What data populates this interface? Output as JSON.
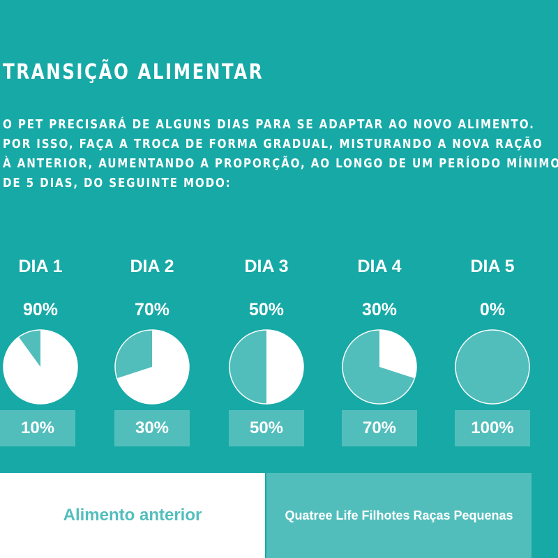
{
  "header": {
    "title": "TRANSIÇÃO ALIMENTAR",
    "intro_lines": [
      "O PET PRECISARÁ DE ALGUNS DIAS PARA SE ADAPTAR AO NOVO ALIMENTO.",
      "POR ISSO, FAÇA A TROCA DE FORMA GRADUAL, MISTURANDO A NOVA RAÇÃO",
      "À ANTERIOR, AUMENTANDO A PROPORÇÃO, AO LONGO DE UM PERÍODO MÍNIMO",
      "DE 5 DIAS, DO SEGUINTE MODO:"
    ]
  },
  "colors": {
    "background": "#17a9a6",
    "old_food": "#ffffff",
    "new_food": "#52bebc"
  },
  "days": [
    {
      "label": "DIA 1",
      "old_label": "90%",
      "new_label": "10%",
      "old_fraction": 0.9
    },
    {
      "label": "DIA 2",
      "old_label": "70%",
      "new_label": "30%",
      "old_fraction": 0.7
    },
    {
      "label": "DIA 3",
      "old_label": "50%",
      "new_label": "50%",
      "old_fraction": 0.5
    },
    {
      "label": "DIA 4",
      "old_label": "30%",
      "new_label": "70%",
      "old_fraction": 0.3
    },
    {
      "label": "DIA 5",
      "old_label": "0%",
      "new_label": "100%",
      "old_fraction": 0.0
    }
  ],
  "legend": {
    "old_food": "Alimento anterior",
    "new_food": "Quatree Life Filhotes Raças Pequenas"
  }
}
